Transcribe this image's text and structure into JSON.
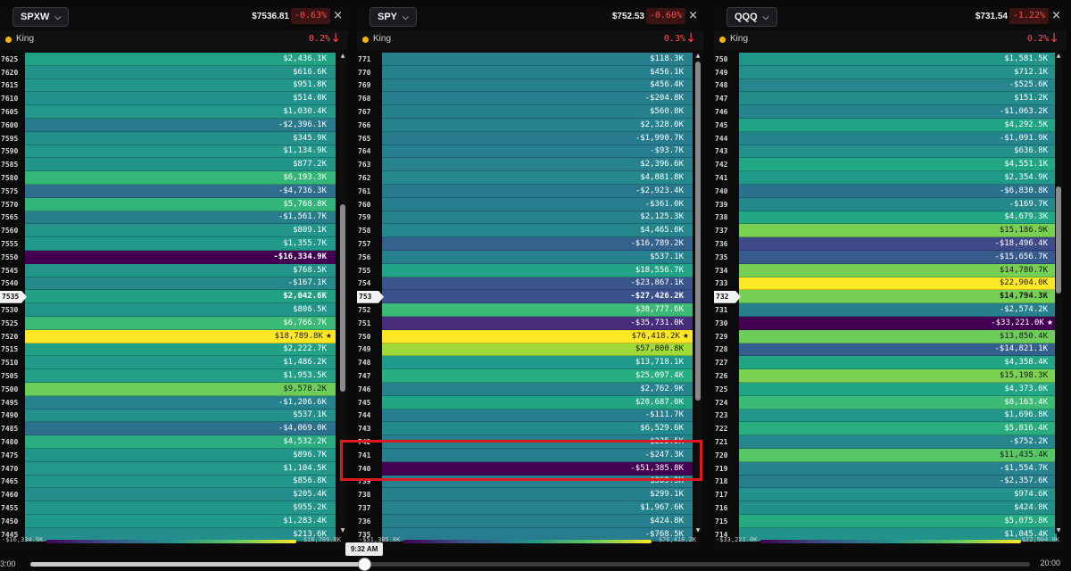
{
  "panels": [
    {
      "ticker": "SPXW",
      "price": "$7536.81",
      "change": "-0.63%",
      "king_label": "King",
      "king_pct": "0.2%",
      "current_strike": "7535",
      "legend_min": "-$16,334.9K",
      "legend_max": "$18,789.8K",
      "rows": [
        {
          "strike": "7625",
          "value": "$2,436.1K",
          "color": "#22a284"
        },
        {
          "strike": "7620",
          "value": "$616.6K",
          "color": "#23938a"
        },
        {
          "strike": "7615",
          "value": "$951.8K",
          "color": "#22968a"
        },
        {
          "strike": "7610",
          "value": "$514.0K",
          "color": "#23918b"
        },
        {
          "strike": "7605",
          "value": "$1,030.4K",
          "color": "#22978a"
        },
        {
          "strike": "7600",
          "value": "-$2,396.1K",
          "color": "#2a7a8e"
        },
        {
          "strike": "7595",
          "value": "$345.9K",
          "color": "#23908b"
        },
        {
          "strike": "7590",
          "value": "$1,134.9K",
          "color": "#22988a"
        },
        {
          "strike": "7585",
          "value": "$877.2K",
          "color": "#22958a"
        },
        {
          "strike": "7580",
          "value": "$6,193.3K",
          "color": "#35b779"
        },
        {
          "strike": "7575",
          "value": "-$4,736.3K",
          "color": "#2e6d8e"
        },
        {
          "strike": "7570",
          "value": "$5,768.8K",
          "color": "#31b57b"
        },
        {
          "strike": "7565",
          "value": "-$1,561.7K",
          "color": "#277f8e"
        },
        {
          "strike": "7560",
          "value": "$809.1K",
          "color": "#22958a"
        },
        {
          "strike": "7555",
          "value": "$1,355.7K",
          "color": "#21998a"
        },
        {
          "strike": "7550",
          "value": "-$16,334.9K",
          "color": "#440154",
          "highlight": true
        },
        {
          "strike": "7545",
          "value": "$768.5K",
          "color": "#22948a"
        },
        {
          "strike": "7540",
          "value": "-$167.1K",
          "color": "#25898c"
        },
        {
          "strike": "7535",
          "value": "$2,042.6K",
          "color": "#22a086",
          "highlight": true
        },
        {
          "strike": "7530",
          "value": "$806.5K",
          "color": "#22958a"
        },
        {
          "strike": "7525",
          "value": "$6,766.7K",
          "color": "#3aba76"
        },
        {
          "strike": "7520",
          "value": "$18,789.8K",
          "color": "#fde725",
          "light": true,
          "king": true
        },
        {
          "strike": "7515",
          "value": "$2,222.7K",
          "color": "#22a185"
        },
        {
          "strike": "7510",
          "value": "$1,486.2K",
          "color": "#219a89"
        },
        {
          "strike": "7505",
          "value": "$1,953.5K",
          "color": "#229f86"
        },
        {
          "strike": "7500",
          "value": "$9,578.2K",
          "color": "#6ccd5a",
          "light": true
        },
        {
          "strike": "7495",
          "value": "-$1,206.6K",
          "color": "#26838e"
        },
        {
          "strike": "7490",
          "value": "$537.1K",
          "color": "#23918b"
        },
        {
          "strike": "7485",
          "value": "-$4,069.0K",
          "color": "#2d708e"
        },
        {
          "strike": "7480",
          "value": "$4,532.2K",
          "color": "#2aac80"
        },
        {
          "strike": "7475",
          "value": "$896.7K",
          "color": "#22958a"
        },
        {
          "strike": "7470",
          "value": "$1,104.5K",
          "color": "#22978a"
        },
        {
          "strike": "7465",
          "value": "$856.8K",
          "color": "#22958a"
        },
        {
          "strike": "7460",
          "value": "$205.4K",
          "color": "#238e8c"
        },
        {
          "strike": "7455",
          "value": "$955.2K",
          "color": "#22968a"
        },
        {
          "strike": "7450",
          "value": "$1,283.4K",
          "color": "#21998a"
        },
        {
          "strike": "7445",
          "value": "$213.6K",
          "color": "#238e8c"
        }
      ]
    },
    {
      "ticker": "SPY",
      "price": "$752.53",
      "change": "-0.60%",
      "king_label": "King",
      "king_pct": "0.3%",
      "current_strike": "753",
      "legend_min": "-$51,385.8K",
      "legend_max": "$76,418.2K",
      "rows": [
        {
          "strike": "771",
          "value": "$118.3K",
          "color": "#277f8e"
        },
        {
          "strike": "770",
          "value": "$456.1K",
          "color": "#27808e"
        },
        {
          "strike": "769",
          "value": "$456.4K",
          "color": "#27808e"
        },
        {
          "strike": "768",
          "value": "-$204.8K",
          "color": "#277e8e"
        },
        {
          "strike": "767",
          "value": "$560.8K",
          "color": "#27808e"
        },
        {
          "strike": "766",
          "value": "$2,328.0K",
          "color": "#26838e"
        },
        {
          "strike": "765",
          "value": "-$1,990.7K",
          "color": "#287b8e"
        },
        {
          "strike": "764",
          "value": "-$93.7K",
          "color": "#277e8e"
        },
        {
          "strike": "763",
          "value": "$2,396.6K",
          "color": "#26838e"
        },
        {
          "strike": "762",
          "value": "$4,881.8K",
          "color": "#24888d"
        },
        {
          "strike": "761",
          "value": "-$2,923.4K",
          "color": "#28798e"
        },
        {
          "strike": "760",
          "value": "-$361.0K",
          "color": "#277e8e"
        },
        {
          "strike": "759",
          "value": "$2,125.3K",
          "color": "#26838e"
        },
        {
          "strike": "758",
          "value": "$4,465.0K",
          "color": "#24878d"
        },
        {
          "strike": "757",
          "value": "-$16,789.2K",
          "color": "#33628d"
        },
        {
          "strike": "756",
          "value": "$537.1K",
          "color": "#27808e"
        },
        {
          "strike": "755",
          "value": "$18,556.7K",
          "color": "#20a386"
        },
        {
          "strike": "754",
          "value": "-$23,867.1K",
          "color": "#39558c"
        },
        {
          "strike": "753",
          "value": "-$27,426.2K",
          "color": "#3b518b",
          "highlight": true
        },
        {
          "strike": "752",
          "value": "$38,777.6K",
          "color": "#3aba76"
        },
        {
          "strike": "751",
          "value": "-$35,731.0K",
          "color": "#472d7b"
        },
        {
          "strike": "750",
          "value": "$76,418.2K",
          "color": "#fde725",
          "light": true,
          "king": true
        },
        {
          "strike": "749",
          "value": "$57,800.8K",
          "color": "#a0da39",
          "light": true
        },
        {
          "strike": "748",
          "value": "$13,718.1K",
          "color": "#1f9a8a"
        },
        {
          "strike": "747",
          "value": "$25,097.4K",
          "color": "#26ad81"
        },
        {
          "strike": "746",
          "value": "$2,762.9K",
          "color": "#26838e"
        },
        {
          "strike": "745",
          "value": "$20,687.0K",
          "color": "#21a585"
        },
        {
          "strike": "744",
          "value": "-$111.7K",
          "color": "#277e8e"
        },
        {
          "strike": "743",
          "value": "$6,529.6K",
          "color": "#238a8d"
        },
        {
          "strike": "742",
          "value": "$235.5K",
          "color": "#277f8e"
        },
        {
          "strike": "741",
          "value": "-$247.3K",
          "color": "#277e8e"
        },
        {
          "strike": "740",
          "value": "-$51,385.8K",
          "color": "#440154"
        },
        {
          "strike": "739",
          "value": "$369.9K",
          "color": "#27808e"
        },
        {
          "strike": "738",
          "value": "$299.1K",
          "color": "#27808e"
        },
        {
          "strike": "737",
          "value": "$1,967.6K",
          "color": "#26828e"
        },
        {
          "strike": "736",
          "value": "$424.8K",
          "color": "#27808e"
        },
        {
          "strike": "735",
          "value": "-$768.5K",
          "color": "#277d8e"
        }
      ]
    },
    {
      "ticker": "QQQ",
      "price": "$731.54",
      "change": "-1.22%",
      "king_label": "King",
      "king_pct": "0.2%",
      "current_strike": "732",
      "legend_min": "-$33,221.0K",
      "legend_max": "$22,904.0K",
      "rows": [
        {
          "strike": "750",
          "value": "$1,581.5K",
          "color": "#22958a"
        },
        {
          "strike": "749",
          "value": "$712.1K",
          "color": "#23908b"
        },
        {
          "strike": "748",
          "value": "-$525.6K",
          "color": "#25878d"
        },
        {
          "strike": "747",
          "value": "$151.2K",
          "color": "#238d8c"
        },
        {
          "strike": "746",
          "value": "-$1,063.2K",
          "color": "#26848e"
        },
        {
          "strike": "745",
          "value": "$4,292.5K",
          "color": "#20a486"
        },
        {
          "strike": "744",
          "value": "-$1,091.9K",
          "color": "#26848e"
        },
        {
          "strike": "743",
          "value": "$636.8K",
          "color": "#23908b"
        },
        {
          "strike": "742",
          "value": "$4,551.1K",
          "color": "#22a785"
        },
        {
          "strike": "741",
          "value": "$2,354.9K",
          "color": "#1f9a8a"
        },
        {
          "strike": "740",
          "value": "-$6,830.8K",
          "color": "#2c718e"
        },
        {
          "strike": "739",
          "value": "-$169.7K",
          "color": "#24898d"
        },
        {
          "strike": "738",
          "value": "$4,679.3K",
          "color": "#22a785"
        },
        {
          "strike": "737",
          "value": "$15,186.9K",
          "color": "#7ad151",
          "light": true
        },
        {
          "strike": "736",
          "value": "-$18,496.4K",
          "color": "#3e4a89"
        },
        {
          "strike": "735",
          "value": "-$15,656.7K",
          "color": "#375b8d"
        },
        {
          "strike": "734",
          "value": "$14,780.7K",
          "color": "#75d054",
          "light": true
        },
        {
          "strike": "733",
          "value": "$22,904.0K",
          "color": "#fde725",
          "light": true
        },
        {
          "strike": "732",
          "value": "$14,794.3K",
          "color": "#75d054",
          "light": true,
          "highlight": true
        },
        {
          "strike": "731",
          "value": "-$2,574.2K",
          "color": "#277f8e"
        },
        {
          "strike": "730",
          "value": "-$33,221.0K",
          "color": "#440154",
          "king": true
        },
        {
          "strike": "729",
          "value": "$13,850.4K",
          "color": "#6ccd5a",
          "light": true
        },
        {
          "strike": "728",
          "value": "-$14,821.1K",
          "color": "#355f8d"
        },
        {
          "strike": "727",
          "value": "$4,358.4K",
          "color": "#21a685"
        },
        {
          "strike": "726",
          "value": "$15,198.3K",
          "color": "#7ad151",
          "light": true
        },
        {
          "strike": "725",
          "value": "$4,373.0K",
          "color": "#21a685"
        },
        {
          "strike": "724",
          "value": "$8,163.4K",
          "color": "#3bbb75"
        },
        {
          "strike": "723",
          "value": "$1,696.8K",
          "color": "#22968a"
        },
        {
          "strike": "722",
          "value": "$5,816.4K",
          "color": "#2aae80"
        },
        {
          "strike": "721",
          "value": "-$752.2K",
          "color": "#25868e"
        },
        {
          "strike": "720",
          "value": "$11,435.4K",
          "color": "#56c667",
          "light": true
        },
        {
          "strike": "719",
          "value": "-$1,554.7K",
          "color": "#26828e"
        },
        {
          "strike": "718",
          "value": "-$2,357.6K",
          "color": "#277f8e"
        },
        {
          "strike": "717",
          "value": "$974.6K",
          "color": "#23928b"
        },
        {
          "strike": "716",
          "value": "$424.8K",
          "color": "#238f8b"
        },
        {
          "strike": "715",
          "value": "$5,075.8K",
          "color": "#25aa82"
        },
        {
          "strike": "714",
          "value": "$1,045.4K",
          "color": "#22938a"
        }
      ]
    }
  ],
  "timeline": {
    "start_label": "3:00",
    "end_label": "20:00",
    "current_time": "9:32 AM",
    "progress": 0.335
  },
  "colors": {
    "negative_change": "#ff4d4d",
    "king_dot": "#f6b50e",
    "selection_box": "#e0191e"
  },
  "icons": {
    "close": "close-icon",
    "dropdown": "chevron-down-icon",
    "king_arrow": "arrow-down-icon",
    "king_dot": "dot-icon"
  }
}
